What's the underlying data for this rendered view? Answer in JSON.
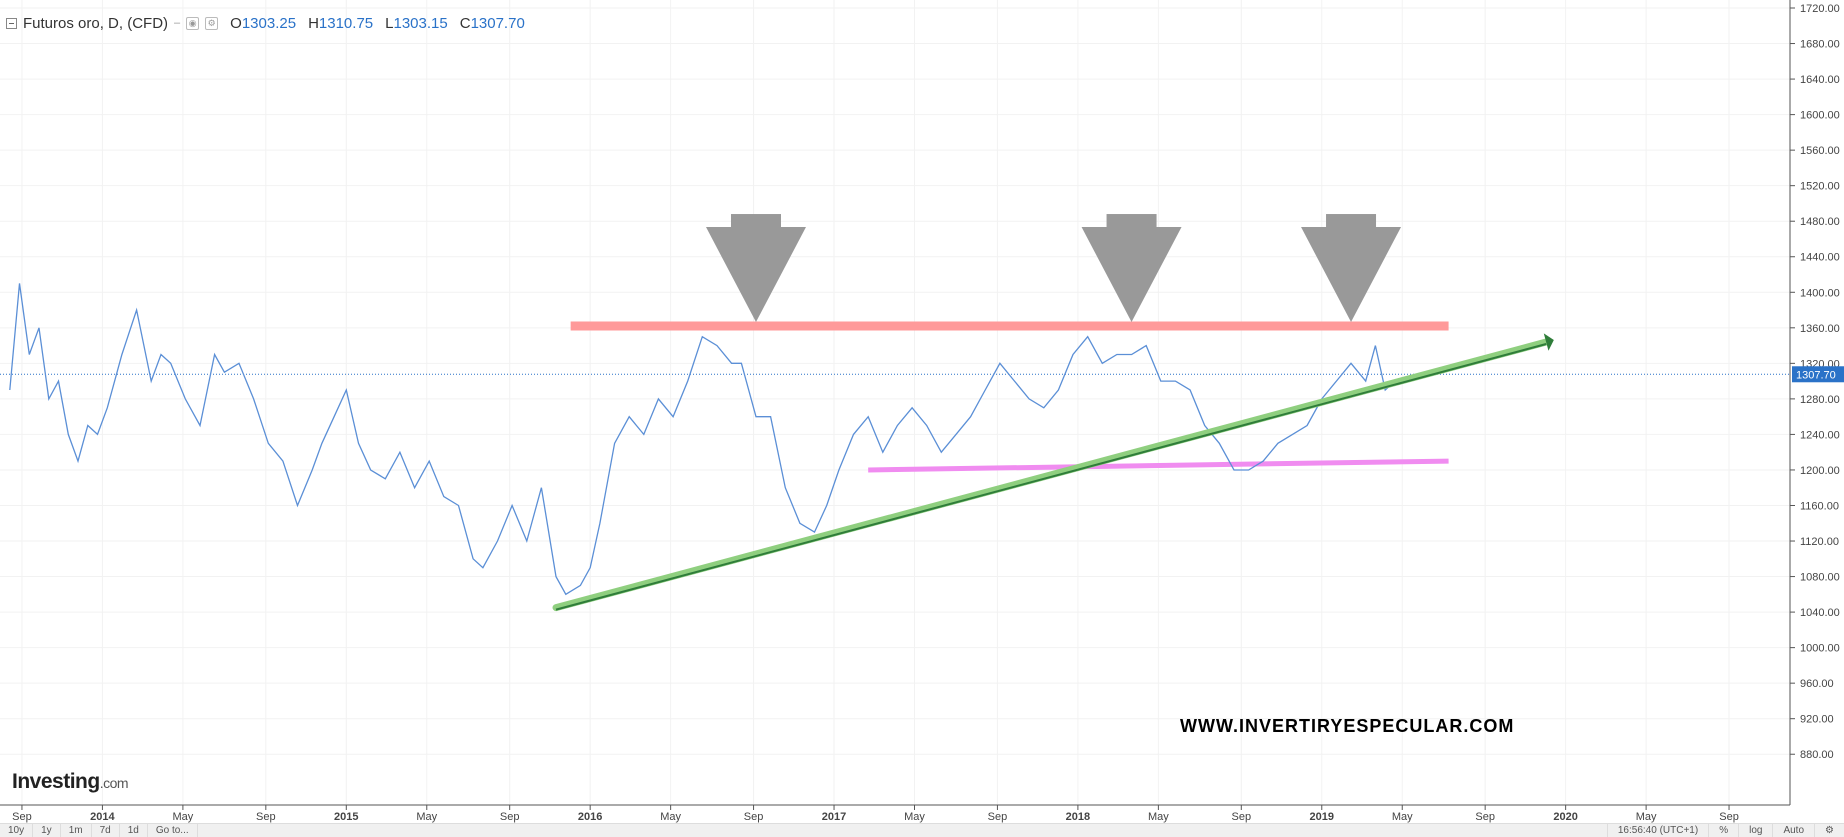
{
  "legend": {
    "title": "Futuros oro, D, (CFD)",
    "caret": "–",
    "open_key": "O",
    "open": "1303.25",
    "high_key": "H",
    "high": "1310.75",
    "low_key": "L",
    "low": "1303.15",
    "close_key": "C",
    "close": "1307.70"
  },
  "logo": {
    "name": "Investing",
    "suffix": ".com"
  },
  "watermark": "WWW.INVERTIRYESPECULAR.COM",
  "bottom_bar": {
    "ranges": [
      "10y",
      "1y",
      "1m",
      "7d",
      "1d"
    ],
    "goto": "Go to...",
    "time": "16:56:40 (UTC+1)",
    "pct": "%",
    "log": "log",
    "auto": "Auto",
    "settings_icon": "gear-icon"
  },
  "colors": {
    "price_line": "#5b8fd6",
    "resistance": "#ff9a9a",
    "support": "#f08cf0",
    "trendline": "#2f7d3a",
    "trendline_glow": "#8fcf7f",
    "arrow": "#999999",
    "last_price_tag": "#2a72c8"
  },
  "chart_data": {
    "type": "line",
    "title": "Futuros oro, D, (CFD)",
    "ylim": [
      860,
      1720
    ],
    "y_ticks": [
      "1720.00",
      "1680.00",
      "1640.00",
      "1600.00",
      "1560.00",
      "1520.00",
      "1480.00",
      "1440.00",
      "1400.00",
      "1360.00",
      "1320.00",
      "1280.00",
      "1240.00",
      "1200.00",
      "1160.00",
      "1120.00",
      "1080.00",
      "1040.00",
      "1000.00",
      "960.00",
      "920.00",
      "880.00"
    ],
    "x_ticks": [
      "Sep",
      "2014",
      "May",
      "Sep",
      "2015",
      "May",
      "Sep",
      "2016",
      "May",
      "Sep",
      "2017",
      "May",
      "Sep",
      "2018",
      "May",
      "Sep",
      "2019",
      "May",
      "Sep",
      "2020",
      "May",
      "Sep"
    ],
    "last_price": 1307.7,
    "last_price_label": "1307.70",
    "series": [
      {
        "name": "Futuros oro",
        "x": [
          2013.62,
          2013.66,
          2013.7,
          2013.74,
          2013.78,
          2013.82,
          2013.86,
          2013.9,
          2013.94,
          2013.98,
          2014.02,
          2014.08,
          2014.14,
          2014.2,
          2014.24,
          2014.28,
          2014.34,
          2014.4,
          2014.46,
          2014.5,
          2014.56,
          2014.62,
          2014.68,
          2014.74,
          2014.8,
          2014.86,
          2014.9,
          2014.95,
          2015.0,
          2015.05,
          2015.1,
          2015.16,
          2015.22,
          2015.28,
          2015.34,
          2015.4,
          2015.46,
          2015.52,
          2015.56,
          2015.62,
          2015.68,
          2015.74,
          2015.8,
          2015.86,
          2015.9,
          2015.96,
          2016.0,
          2016.04,
          2016.1,
          2016.16,
          2016.22,
          2016.28,
          2016.34,
          2016.4,
          2016.46,
          2016.52,
          2016.58,
          2016.62,
          2016.68,
          2016.74,
          2016.8,
          2016.86,
          2016.92,
          2016.97,
          2017.02,
          2017.08,
          2017.14,
          2017.2,
          2017.26,
          2017.32,
          2017.38,
          2017.44,
          2017.5,
          2017.56,
          2017.62,
          2017.68,
          2017.74,
          2017.8,
          2017.86,
          2017.92,
          2017.98,
          2018.04,
          2018.1,
          2018.16,
          2018.22,
          2018.28,
          2018.34,
          2018.4,
          2018.46,
          2018.52,
          2018.58,
          2018.64,
          2018.7,
          2018.76,
          2018.82,
          2018.88,
          2018.94,
          2019.0,
          2019.06,
          2019.12,
          2019.18,
          2019.22,
          2019.26,
          2019.3
        ],
        "values": [
          1290,
          1410,
          1330,
          1360,
          1280,
          1300,
          1240,
          1210,
          1250,
          1240,
          1270,
          1330,
          1380,
          1300,
          1330,
          1320,
          1280,
          1250,
          1330,
          1310,
          1320,
          1280,
          1230,
          1210,
          1160,
          1200,
          1230,
          1260,
          1290,
          1230,
          1200,
          1190,
          1220,
          1180,
          1210,
          1170,
          1160,
          1100,
          1090,
          1120,
          1160,
          1120,
          1180,
          1080,
          1060,
          1070,
          1090,
          1140,
          1230,
          1260,
          1240,
          1280,
          1260,
          1300,
          1350,
          1340,
          1320,
          1320,
          1260,
          1260,
          1180,
          1140,
          1130,
          1160,
          1200,
          1240,
          1260,
          1220,
          1250,
          1270,
          1250,
          1220,
          1240,
          1260,
          1290,
          1320,
          1300,
          1280,
          1270,
          1290,
          1330,
          1350,
          1320,
          1330,
          1330,
          1340,
          1300,
          1300,
          1290,
          1250,
          1230,
          1200,
          1200,
          1210,
          1230,
          1240,
          1250,
          1280,
          1300,
          1320,
          1300,
          1340,
          1290,
          1300
        ]
      }
    ],
    "annotations": [
      {
        "type": "hline",
        "name": "resistance",
        "y": 1362,
        "x0": 2015.92,
        "x1": 2019.52
      },
      {
        "type": "line",
        "name": "support",
        "y0": 1200,
        "y1": 1210,
        "x0": 2017.14,
        "x1": 2019.52
      },
      {
        "type": "trendline",
        "name": "uptrend",
        "x0": 2015.86,
        "y0": 1045,
        "x1": 2019.92,
        "y1": 1344
      },
      {
        "type": "arrow-down",
        "name": "top-1",
        "x": 2016.68
      },
      {
        "type": "arrow-down",
        "name": "top-2",
        "x": 2018.22
      },
      {
        "type": "arrow-down",
        "name": "top-3",
        "x": 2019.12
      }
    ]
  }
}
